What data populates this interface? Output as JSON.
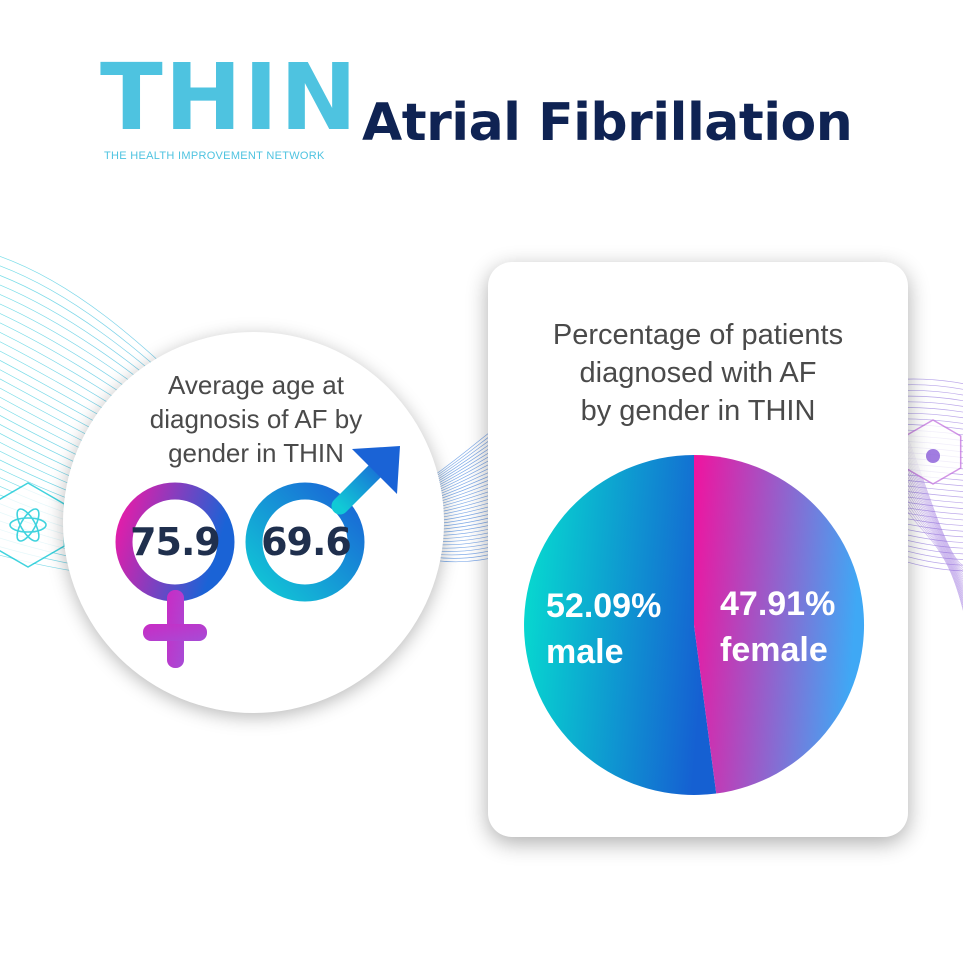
{
  "logo": {
    "wordmark": "THIN",
    "tagline": "THE HEALTH IMPROVEMENT NETWORK",
    "color": "#4ec3e0"
  },
  "title": "Atrial Fibrillation",
  "age_panel": {
    "heading_lines": [
      "Average age at",
      "diagnosis of AF by",
      "gender in THIN"
    ],
    "female_age": "75.9",
    "male_age": "69.6",
    "female_icon": "female-symbol-icon",
    "male_icon": "male-symbol-icon"
  },
  "pie_panel": {
    "heading_lines": [
      "Percentage of patients",
      "diagnosed with AF",
      "by gender in THIN"
    ],
    "male_label": {
      "value": "52.09%",
      "text": "male"
    },
    "female_label": {
      "value": "47.91%",
      "text": "female"
    }
  },
  "chart_data": [
    {
      "type": "bar",
      "title": "Average age at diagnosis of AF by gender in THIN",
      "categories": [
        "female",
        "male"
      ],
      "values": [
        75.9,
        69.6
      ],
      "colors": [
        "#d81fb2",
        "#11c9d6"
      ]
    },
    {
      "type": "pie",
      "title": "Percentage of patients diagnosed with AF by gender in THIN",
      "categories": [
        "male",
        "female"
      ],
      "values": [
        52.09,
        47.91
      ],
      "colors": [
        "#08d3cf",
        "#ee1aa5"
      ]
    }
  ],
  "colors": {
    "navy": "#0f2353",
    "cyan": "#11c9d6",
    "blue": "#1a63d6",
    "magenta": "#e81ba8",
    "purple": "#8a5bd8"
  }
}
